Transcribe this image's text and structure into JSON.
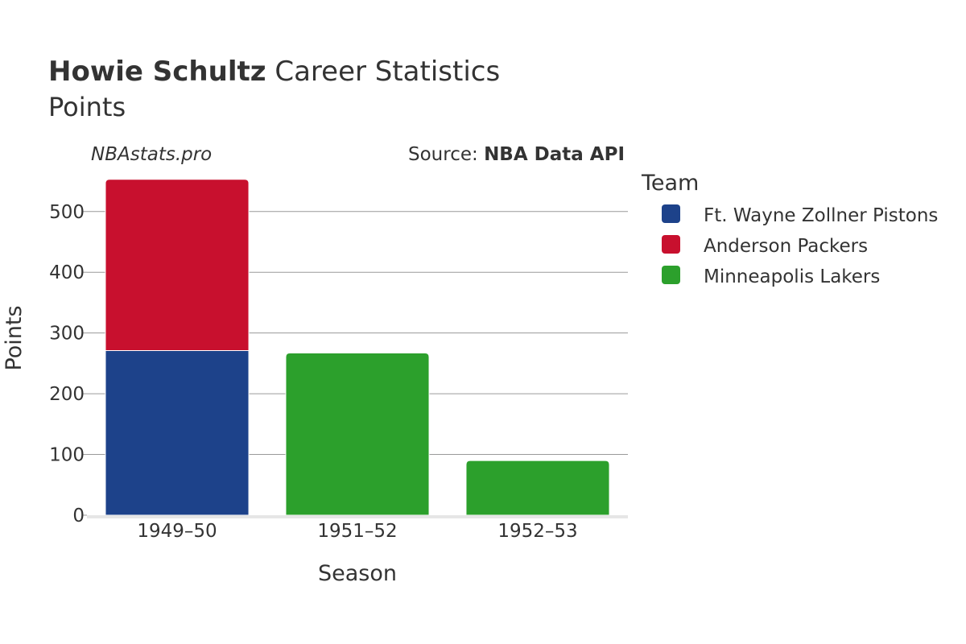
{
  "header": {
    "player_name": "Howie Schultz",
    "title_rest": " Career Statistics",
    "subtitle": "Points"
  },
  "watermark": "NBAstats.pro",
  "source": {
    "prefix": "Source: ",
    "name": "NBA Data API"
  },
  "legend": {
    "title": "Team",
    "items": [
      {
        "label": "Ft. Wayne Zollner Pistons",
        "color": "#1d428a"
      },
      {
        "label": "Anderson Packers",
        "color": "#c8102e"
      },
      {
        "label": "Minneapolis Lakers",
        "color": "#2ca02c"
      }
    ]
  },
  "chart_data": {
    "type": "bar",
    "stacked": true,
    "title": "Howie Schultz Career Statistics",
    "subtitle": "Points",
    "xlabel": "Season",
    "ylabel": "Points",
    "categories": [
      "1949–50",
      "1951–52",
      "1952–53"
    ],
    "ylim": [
      0,
      580
    ],
    "yticks": [
      0,
      100,
      200,
      300,
      400,
      500
    ],
    "grid": true,
    "legend_position": "right",
    "series": [
      {
        "name": "Ft. Wayne Zollner Pistons",
        "color": "#1d428a",
        "values": [
          271,
          0,
          0
        ]
      },
      {
        "name": "Anderson Packers",
        "color": "#c8102e",
        "values": [
          282,
          0,
          0
        ]
      },
      {
        "name": "Minneapolis Lakers",
        "color": "#2ca02c",
        "values": [
          0,
          267,
          90
        ]
      }
    ]
  }
}
